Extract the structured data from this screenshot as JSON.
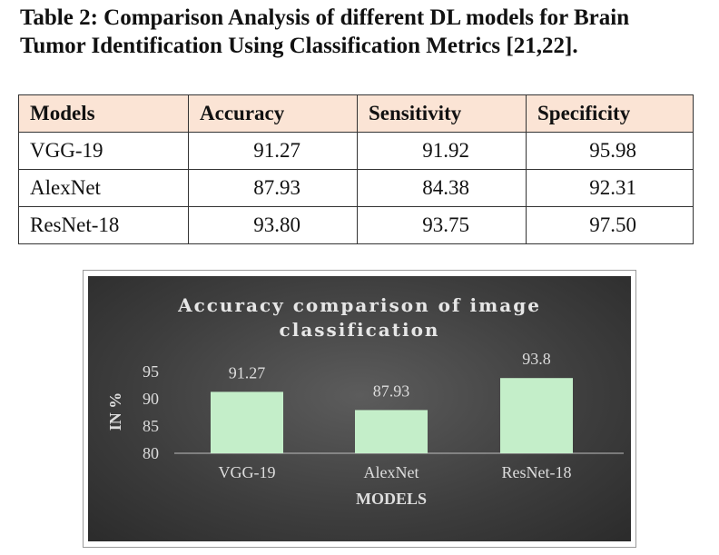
{
  "caption": {
    "line1": "Table 2: Comparison Analysis of different DL models for Brain",
    "line2": "Tumor Identification Using Classification Metrics [21,22]."
  },
  "table": {
    "headers": [
      "Models",
      "Accuracy",
      "Sensitivity",
      "Specificity"
    ],
    "rows": [
      [
        "VGG-19",
        "91.27",
        "91.92",
        "95.98"
      ],
      [
        "AlexNet",
        "87.93",
        "84.38",
        "92.31"
      ],
      [
        "ResNet-18",
        "93.80",
        "93.75",
        "97.50"
      ]
    ]
  },
  "chart_data": {
    "type": "bar",
    "title_line1": "Accuracy comparison of image",
    "title_line2": "classification",
    "categories": [
      "VGG-19",
      "AlexNet",
      "ResNet-18"
    ],
    "values": [
      91.27,
      87.93,
      93.8
    ],
    "data_labels": [
      "91.27",
      "87.93",
      "93.8"
    ],
    "xlabel": "MODELS",
    "ylabel": "IN %",
    "ylim": [
      80,
      95
    ],
    "yticks": [
      80,
      85,
      90,
      95
    ],
    "ytick_labels": [
      "80",
      "85",
      "90",
      "95"
    ],
    "bar_color": "#c4eec9",
    "background_color": "#454545",
    "text_color": "#dddddd",
    "grid": false
  }
}
